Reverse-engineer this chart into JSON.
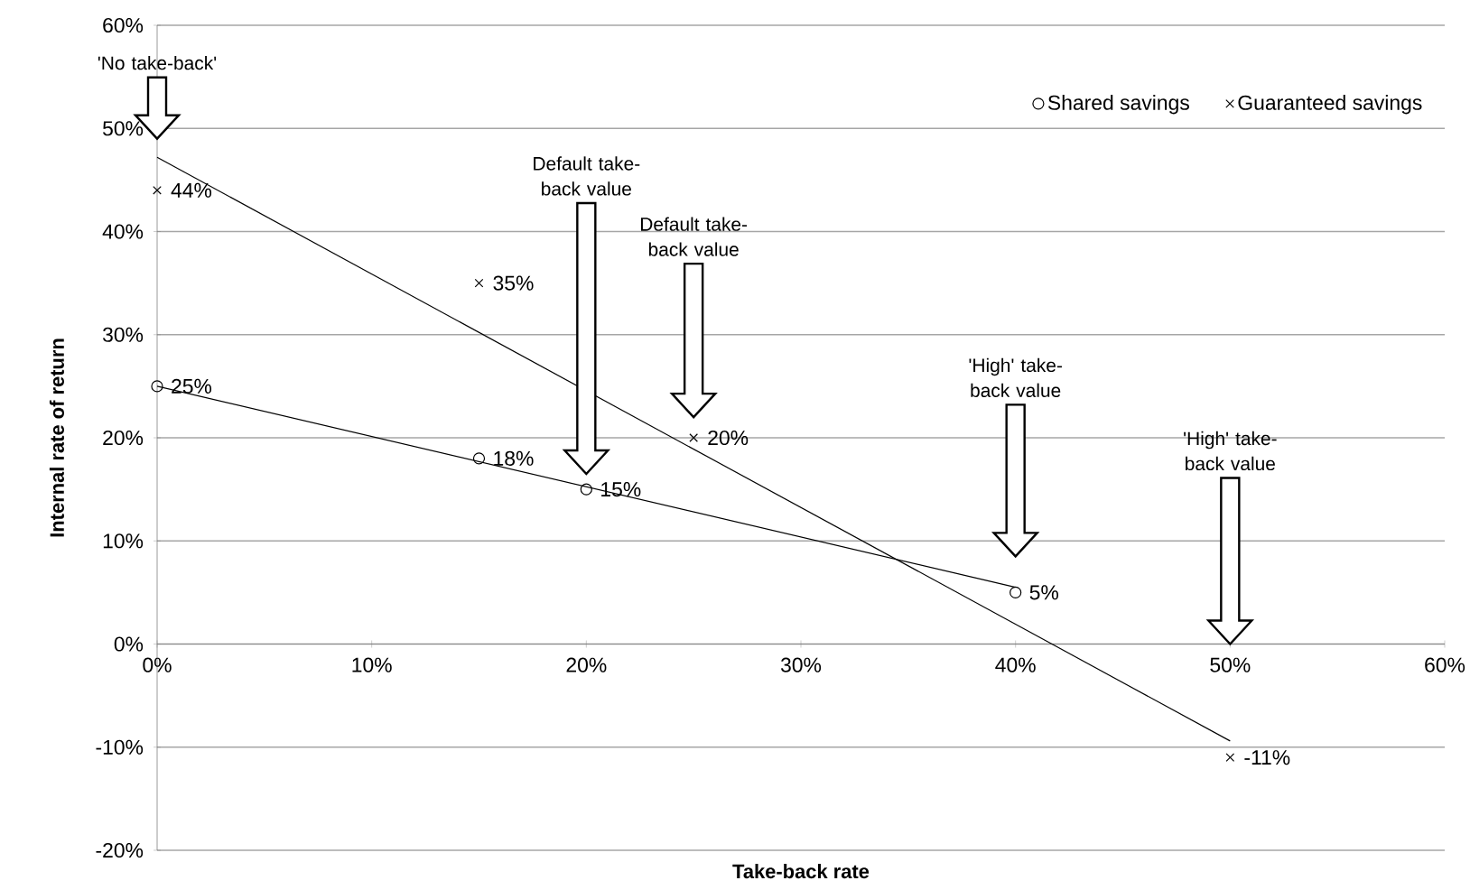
{
  "chart_data": {
    "type": "scatter",
    "xlabel": "Take-back rate",
    "ylabel": "Internal rate of return",
    "xlim": [
      0,
      60
    ],
    "ylim": [
      -20,
      60
    ],
    "xticks": [
      {
        "value": 0,
        "label": "0%"
      },
      {
        "value": 10,
        "label": "10%"
      },
      {
        "value": 20,
        "label": "20%"
      },
      {
        "value": 30,
        "label": "30%"
      },
      {
        "value": 40,
        "label": "40%"
      },
      {
        "value": 50,
        "label": "50%"
      },
      {
        "value": 60,
        "label": "60%"
      }
    ],
    "yticks": [
      {
        "value": -20,
        "label": "-20%"
      },
      {
        "value": -10,
        "label": "-10%"
      },
      {
        "value": 0,
        "label": "0%"
      },
      {
        "value": 10,
        "label": "10%"
      },
      {
        "value": 20,
        "label": "20%"
      },
      {
        "value": 30,
        "label": "30%"
      },
      {
        "value": 40,
        "label": "40%"
      },
      {
        "value": 50,
        "label": "50%"
      },
      {
        "value": 60,
        "label": "60%"
      }
    ],
    "grid": "y",
    "legend": "top right",
    "series": [
      {
        "name": "Shared savings",
        "marker": "circle",
        "color": "#000000",
        "x": [
          0,
          15,
          20,
          40
        ],
        "values": [
          25,
          18,
          15,
          5
        ],
        "value_labels": [
          "25%",
          "18%",
          "15%",
          "5%"
        ]
      },
      {
        "name": "Guaranteed savings",
        "marker": "cross",
        "color": "#000000",
        "x": [
          0,
          15,
          25,
          50
        ],
        "values": [
          44,
          35,
          20,
          -11
        ],
        "value_labels": [
          "44%",
          "35%",
          "20%",
          "-11%"
        ]
      },
      {
        "type": "line",
        "color": "#000000",
        "x": [
          0,
          40
        ],
        "values": [
          25,
          5.5
        ]
      },
      {
        "type": "line",
        "color": "#000000",
        "x": [
          0,
          50
        ],
        "values": [
          47.2,
          -9.4
        ]
      }
    ],
    "annotations": [
      "'No take-back'",
      "Default take-back value",
      "Default take-back value",
      "'High' take-back value",
      "'High' take-back value"
    ]
  }
}
